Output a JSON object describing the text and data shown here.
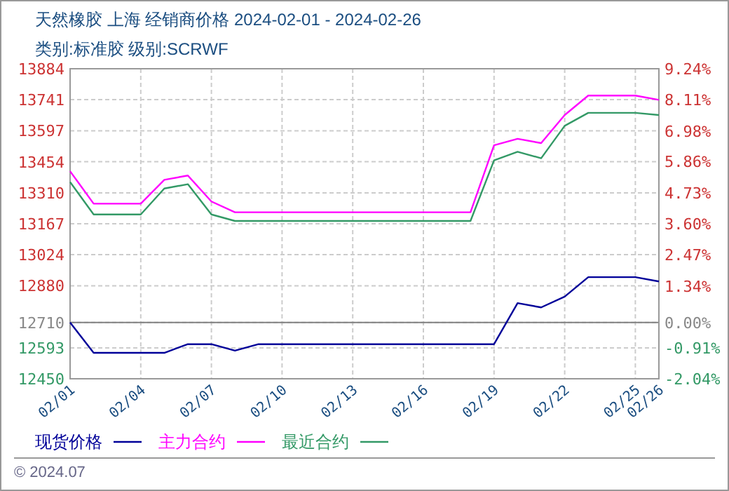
{
  "chart_data": {
    "type": "line",
    "title": "天然橡胶 上海 经销商价格 2024-02-01 - 2024-02-26",
    "subtitle": "类别:标准胶 级别:SCRWF",
    "x": [
      "2024-02-01",
      "2024-02-02",
      "2024-02-03",
      "2024-02-04",
      "2024-02-05",
      "2024-02-06",
      "2024-02-07",
      "2024-02-08",
      "2024-02-09",
      "2024-02-10",
      "2024-02-11",
      "2024-02-12",
      "2024-02-13",
      "2024-02-14",
      "2024-02-15",
      "2024-02-16",
      "2024-02-17",
      "2024-02-18",
      "2024-02-19",
      "2024-02-20",
      "2024-02-21",
      "2024-02-22",
      "2024-02-23",
      "2024-02-24",
      "2024-02-25",
      "2024-02-26"
    ],
    "series": [
      {
        "name": "现货价格",
        "color": "#000099",
        "values": [
          12710,
          12570,
          12570,
          12570,
          12570,
          12610,
          12610,
          12580,
          12610,
          12610,
          12610,
          12610,
          12610,
          12610,
          12610,
          12610,
          12610,
          12610,
          12610,
          12800,
          12780,
          12830,
          12920,
          12920,
          12920,
          12900
        ]
      },
      {
        "name": "主力合约",
        "color": "#ff00ff",
        "values": [
          13410,
          13260,
          13260,
          13260,
          13370,
          13390,
          13270,
          13220,
          13220,
          13220,
          13220,
          13220,
          13220,
          13220,
          13220,
          13220,
          13220,
          13220,
          13530,
          13560,
          13540,
          13670,
          13760,
          13760,
          13760,
          13740
        ]
      },
      {
        "name": "最近合约",
        "color": "#339966",
        "values": [
          13360,
          13210,
          13210,
          13210,
          13330,
          13350,
          13210,
          13180,
          13180,
          13180,
          13180,
          13180,
          13180,
          13180,
          13180,
          13180,
          13180,
          13180,
          13460,
          13500,
          13470,
          13620,
          13680,
          13680,
          13680,
          13670
        ]
      }
    ],
    "xlim": [
      "2024-02-01",
      "2024-02-26"
    ],
    "xticks": [
      {
        "value": "2024-02-01",
        "label": "02/01"
      },
      {
        "value": "2024-02-04",
        "label": "02/04"
      },
      {
        "value": "2024-02-07",
        "label": "02/07"
      },
      {
        "value": "2024-02-10",
        "label": "02/10"
      },
      {
        "value": "2024-02-13",
        "label": "02/13"
      },
      {
        "value": "2024-02-16",
        "label": "02/16"
      },
      {
        "value": "2024-02-19",
        "label": "02/19"
      },
      {
        "value": "2024-02-22",
        "label": "02/22"
      },
      {
        "value": "2024-02-25",
        "label": "02/25"
      },
      {
        "value": "2024-02-26",
        "label": "02/26"
      }
    ],
    "ylim": [
      12450,
      13884
    ],
    "yticks": [
      13884,
      13741,
      13597,
      13454,
      13310,
      13167,
      13024,
      12880,
      12710,
      12593,
      12450
    ],
    "y2lim": [
      -2.04,
      9.24
    ],
    "y2ticks": [
      {
        "value": 9.24,
        "label": "9.24%"
      },
      {
        "value": 8.11,
        "label": "8.11%"
      },
      {
        "value": 6.98,
        "label": "6.98%"
      },
      {
        "value": 5.86,
        "label": "5.86%"
      },
      {
        "value": 4.73,
        "label": "4.73%"
      },
      {
        "value": 3.6,
        "label": "3.60%"
      },
      {
        "value": 2.47,
        "label": "2.47%"
      },
      {
        "value": 1.34,
        "label": "1.34%"
      },
      {
        "value": 0,
        "label": "0.00%"
      },
      {
        "value": -0.91,
        "label": "-0.91%"
      },
      {
        "value": -2.04,
        "label": "-2.04%"
      }
    ],
    "ref_lines": [
      {
        "axis": "y",
        "value": 12710,
        "color": "#808080",
        "line_style": "solid"
      }
    ],
    "grid": true,
    "legend": "bottom",
    "marker": "none",
    "line_style": "solid",
    "annotations": [
      "© 2024.07"
    ]
  }
}
